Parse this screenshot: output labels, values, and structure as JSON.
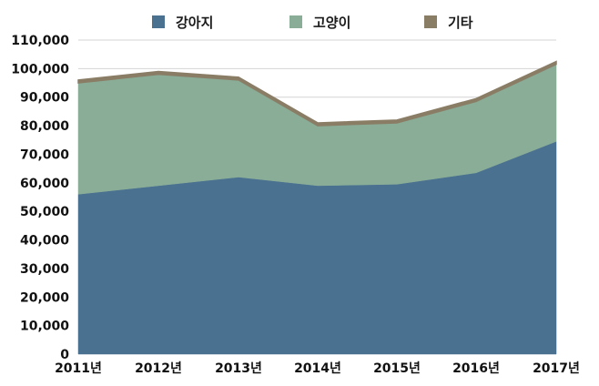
{
  "chart_data": {
    "type": "area",
    "stacked": true,
    "categories": [
      "2011년",
      "2012년",
      "2013년",
      "2014년",
      "2015년",
      "2016년",
      "2017년"
    ],
    "series": [
      {
        "name": "강아지",
        "color": "#4a7190",
        "values": [
          56000,
          59000,
          62000,
          59000,
          59500,
          63500,
          74500
        ]
      },
      {
        "name": "고양이",
        "color": "#89ad97",
        "values": [
          39000,
          39000,
          34000,
          21000,
          21500,
          25000,
          27000
        ]
      },
      {
        "name": "기타",
        "color": "#8a7d66",
        "values": [
          1000,
          1000,
          1000,
          1000,
          1000,
          1000,
          1000
        ]
      }
    ],
    "y_ticks": [
      "0",
      "10,000",
      "20,000",
      "30,000",
      "40,000",
      "50,000",
      "60,000",
      "70,000",
      "80,000",
      "90,000",
      "100,000",
      "110,000"
    ],
    "ylim": [
      0,
      110000
    ],
    "grid": true,
    "legend": "top"
  }
}
